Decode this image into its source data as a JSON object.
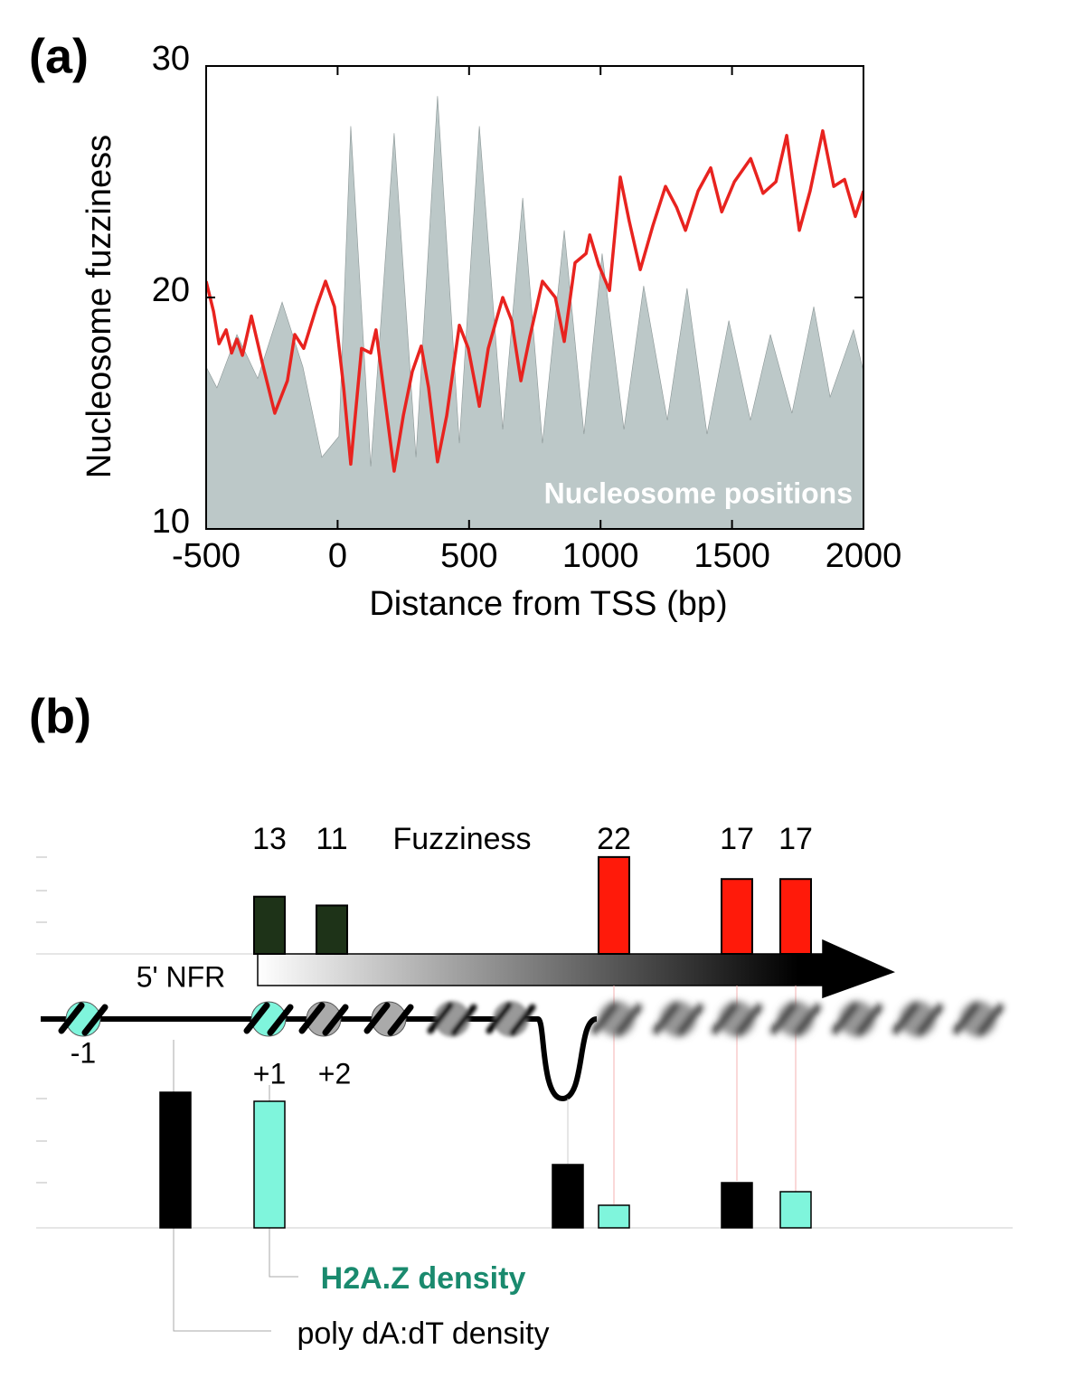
{
  "figure": {
    "panel_labels": [
      "(a)",
      "(b)"
    ]
  },
  "chart_data": {
    "type": "line",
    "xlabel": "Distance from TSS (bp)",
    "ylabel": "Nucleosome fuzziness",
    "xlim": [
      -500,
      2000
    ],
    "ylim": [
      10,
      30
    ],
    "xticks": [
      -500,
      0,
      500,
      1000,
      1500,
      2000
    ],
    "yticks": [
      10,
      20,
      30
    ],
    "series": [
      {
        "name": "Nucleosome positions",
        "color": "#bcc8c8",
        "style": "area",
        "x": [
          -500,
          -459,
          -383,
          -304,
          -211,
          -132,
          -60,
          5,
          50,
          126,
          215,
          298,
          380,
          463,
          539,
          628,
          704,
          779,
          862,
          937,
          1006,
          1089,
          1164,
          1254,
          1329,
          1405,
          1488,
          1570,
          1646,
          1728,
          1811,
          1873,
          1962,
          2000
        ],
        "values": [
          17.0,
          16.1,
          18.4,
          16.5,
          19.8,
          17.0,
          13.1,
          14.0,
          27.4,
          12.7,
          27.1,
          13.1,
          28.7,
          13.7,
          27.4,
          14.3,
          24.3,
          13.7,
          22.9,
          14.1,
          21.9,
          14.3,
          20.5,
          14.7,
          20.4,
          14.1,
          19.0,
          14.7,
          18.4,
          15.0,
          19.6,
          15.7,
          18.6,
          16.8
        ]
      },
      {
        "color": "#e8231f",
        "style": "line",
        "x": [
          -500,
          -472,
          -451,
          -424,
          -403,
          -383,
          -362,
          -328,
          -287,
          -239,
          -191,
          -163,
          -129,
          -80,
          -46,
          -12,
          23,
          50,
          91,
          126,
          146,
          181,
          215,
          250,
          284,
          318,
          346,
          380,
          415,
          463,
          497,
          539,
          573,
          628,
          662,
          697,
          731,
          779,
          828,
          862,
          903,
          945,
          959,
          993,
          1034,
          1075,
          1109,
          1151,
          1199,
          1247,
          1289,
          1323,
          1371,
          1419,
          1461,
          1509,
          1571,
          1618,
          1667,
          1708,
          1756,
          1797,
          1845,
          1887,
          1928,
          1969,
          2000
        ],
        "values": [
          20.7,
          19.4,
          18.0,
          18.6,
          17.6,
          18.2,
          17.5,
          19.2,
          17.2,
          15.0,
          16.4,
          18.4,
          17.8,
          19.6,
          20.7,
          19.6,
          16.1,
          12.8,
          17.8,
          17.6,
          18.6,
          15.5,
          12.5,
          14.9,
          16.8,
          17.9,
          16.1,
          12.9,
          14.9,
          18.8,
          17.8,
          15.3,
          17.8,
          20.0,
          19.0,
          16.4,
          18.3,
          20.7,
          20.0,
          18.1,
          21.5,
          21.9,
          22.7,
          21.4,
          20.3,
          25.2,
          23.3,
          21.2,
          23.1,
          24.8,
          23.9,
          22.9,
          24.6,
          25.6,
          23.7,
          25.0,
          26.0,
          24.5,
          25.0,
          27.0,
          22.9,
          24.6,
          27.2,
          24.8,
          25.1,
          23.5,
          24.6
        ]
      }
    ]
  },
  "diagram": {
    "nfr_label": "5' NFR",
    "nucleosome_labels": [
      "-1",
      "+1",
      "+2"
    ],
    "fuzziness": {
      "label": "Fuzziness",
      "values": [
        13,
        11,
        22,
        17,
        17
      ],
      "colors": [
        "#1e3318",
        "#1e3318",
        "#ff1a0a",
        "#ff1a0a",
        "#ff1a0a"
      ]
    },
    "h2az": {
      "label": "H2A.Z density",
      "color": "#7ff5dc",
      "values": [
        2.8,
        0.5,
        0.8
      ]
    },
    "polya": {
      "label": "poly dA:dT density",
      "color": "#000000",
      "values": [
        3.0,
        1.4,
        1.0
      ]
    }
  }
}
